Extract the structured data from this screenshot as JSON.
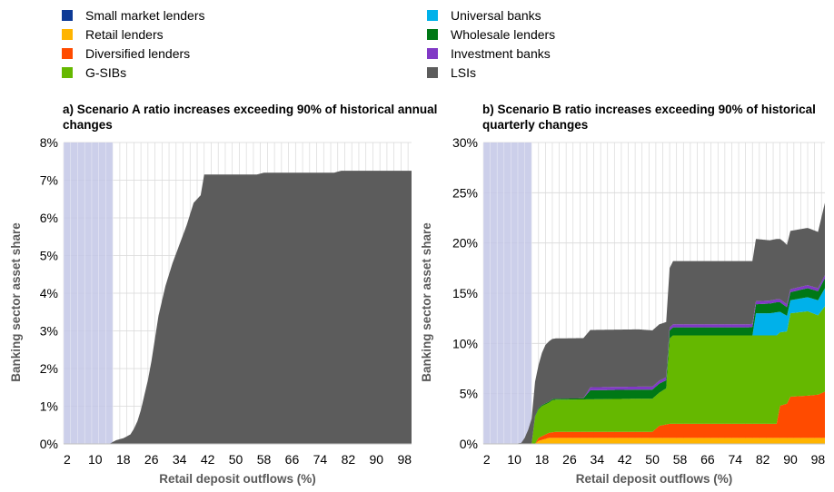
{
  "legend": [
    {
      "name": "Small market lenders",
      "color": "#0d3a96"
    },
    {
      "name": "Retail lenders",
      "color": "#ffb400"
    },
    {
      "name": "Diversified lenders",
      "color": "#ff4b00"
    },
    {
      "name": "G-SIBs",
      "color": "#65b800"
    },
    {
      "name": "Universal banks",
      "color": "#00b1ea"
    },
    {
      "name": "Wholesale lenders",
      "color": "#007816"
    },
    {
      "name": "Investment banks",
      "color": "#8139c6"
    },
    {
      "name": "LSIs",
      "color": "#5c5c5c"
    }
  ],
  "chart_data": [
    {
      "type": "area",
      "title": "a) Scenario A ratio increases exceeding 90% of historical annual changes",
      "xlabel": "Retail deposit outflows (%)",
      "ylabel": "Banking sector asset share",
      "xlim": [
        1,
        100
      ],
      "ylim": [
        0,
        8
      ],
      "y_ticks": [
        "0%",
        "1%",
        "2%",
        "3%",
        "4%",
        "5%",
        "6%",
        "7%",
        "8%"
      ],
      "x_ticks": [
        "2",
        "10",
        "18",
        "26",
        "34",
        "42",
        "50",
        "58",
        "66",
        "74",
        "82",
        "90",
        "98"
      ],
      "shaded_region": [
        1,
        15
      ],
      "stacked": true,
      "series": [
        {
          "name": "LSIs",
          "points": [
            [
              1,
              0
            ],
            [
              14,
              0
            ],
            [
              15,
              0.05
            ],
            [
              16,
              0.1
            ],
            [
              18,
              0.15
            ],
            [
              20,
              0.25
            ],
            [
              21,
              0.4
            ],
            [
              22,
              0.6
            ],
            [
              23,
              0.9
            ],
            [
              24,
              1.3
            ],
            [
              25,
              1.7
            ],
            [
              26,
              2.2
            ],
            [
              27,
              2.8
            ],
            [
              28,
              3.4
            ],
            [
              30,
              4.2
            ],
            [
              32,
              4.8
            ],
            [
              34,
              5.3
            ],
            [
              36,
              5.8
            ],
            [
              37,
              6.1
            ],
            [
              38,
              6.4
            ],
            [
              40,
              6.6
            ],
            [
              41,
              7.15
            ],
            [
              56,
              7.15
            ],
            [
              58,
              7.2
            ],
            [
              78,
              7.2
            ],
            [
              80,
              7.25
            ],
            [
              100,
              7.25
            ]
          ]
        }
      ]
    },
    {
      "type": "area",
      "title": "b) Scenario B ratio increases exceeding 90% of historical quarterly changes",
      "xlabel": "Retail deposit outflows (%)",
      "ylabel": "Banking sector asset share",
      "xlim": [
        1,
        100
      ],
      "ylim": [
        0,
        30
      ],
      "y_ticks": [
        "0%",
        "5%",
        "10%",
        "15%",
        "20%",
        "25%",
        "30%"
      ],
      "x_ticks": [
        "2",
        "10",
        "18",
        "26",
        "34",
        "42",
        "50",
        "58",
        "66",
        "74",
        "82",
        "90",
        "98"
      ],
      "shaded_region": [
        1,
        15
      ],
      "stacked": true,
      "series": [
        {
          "name": "Small market lenders",
          "points": [
            [
              1,
              0
            ],
            [
              100,
              0
            ]
          ]
        },
        {
          "name": "Retail lenders",
          "points": [
            [
              1,
              0
            ],
            [
              16,
              0
            ],
            [
              17,
              0.3
            ],
            [
              20,
              0.6
            ],
            [
              100,
              0.6
            ]
          ]
        },
        {
          "name": "Diversified lenders",
          "points": [
            [
              1,
              0
            ],
            [
              16,
              0
            ],
            [
              17,
              0.3
            ],
            [
              20,
              0.5
            ],
            [
              22,
              0.6
            ],
            [
              50,
              0.6
            ],
            [
              52,
              1.2
            ],
            [
              55,
              1.4
            ],
            [
              86,
              1.4
            ],
            [
              87,
              3.2
            ],
            [
              89,
              3.4
            ],
            [
              90,
              4.1
            ],
            [
              95,
              4.2
            ],
            [
              98,
              4.3
            ],
            [
              100,
              4.6
            ]
          ]
        },
        {
          "name": "G-SIBs",
          "points": [
            [
              1,
              0
            ],
            [
              15,
              0
            ],
            [
              16,
              2.7
            ],
            [
              18,
              3.0
            ],
            [
              20,
              3.0
            ],
            [
              21,
              3.2
            ],
            [
              23,
              3.2
            ],
            [
              46,
              3.3
            ],
            [
              52,
              3.3
            ],
            [
              54,
              3.6
            ],
            [
              55,
              8.5
            ],
            [
              56,
              8.8
            ],
            [
              86,
              8.8
            ],
            [
              87,
              7.3
            ],
            [
              89,
              7.2
            ],
            [
              90,
              8.3
            ],
            [
              95,
              8.4
            ],
            [
              98,
              7.9
            ],
            [
              100,
              8.5
            ]
          ]
        },
        {
          "name": "Universal banks",
          "points": [
            [
              1,
              0
            ],
            [
              78,
              0
            ],
            [
              79,
              0
            ],
            [
              80,
              2.2
            ],
            [
              84,
              2.2
            ],
            [
              86,
              2.3
            ],
            [
              90,
              1.3
            ],
            [
              95,
              1.4
            ],
            [
              98,
              1.5
            ],
            [
              100,
              1.8
            ]
          ]
        },
        {
          "name": "Wholesale lenders",
          "points": [
            [
              1,
              0
            ],
            [
              15,
              0
            ],
            [
              16,
              0.1
            ],
            [
              30,
              0.1
            ],
            [
              32,
              0.9
            ],
            [
              46,
              0.9
            ],
            [
              52,
              0.9
            ],
            [
              54,
              0.8
            ],
            [
              56,
              0.8
            ],
            [
              78,
              0.8
            ],
            [
              80,
              0.9
            ],
            [
              86,
              1.0
            ],
            [
              90,
              0.8
            ],
            [
              95,
              0.9
            ],
            [
              98,
              0.9
            ],
            [
              100,
              1.0
            ]
          ]
        },
        {
          "name": "Investment banks",
          "points": [
            [
              1,
              0
            ],
            [
              30,
              0
            ],
            [
              32,
              0.3
            ],
            [
              100,
              0.3
            ]
          ]
        },
        {
          "name": "LSIs",
          "points": [
            [
              1,
              0
            ],
            [
              10,
              0
            ],
            [
              12,
              0.1
            ],
            [
              13,
              0.6
            ],
            [
              14,
              1.4
            ],
            [
              15,
              2.5
            ],
            [
              16,
              3.4
            ],
            [
              17,
              4.3
            ],
            [
              18,
              5.2
            ],
            [
              19,
              5.8
            ],
            [
              20,
              6.0
            ],
            [
              30,
              6.0
            ],
            [
              32,
              5.7
            ],
            [
              46,
              5.7
            ],
            [
              50,
              5.6
            ],
            [
              52,
              5.6
            ],
            [
              54,
              5.5
            ],
            [
              56,
              6.3
            ],
            [
              78,
              6.3
            ],
            [
              80,
              6.2
            ],
            [
              84,
              6.0
            ],
            [
              86,
              6.0
            ],
            [
              88,
              6.0
            ],
            [
              90,
              5.8
            ],
            [
              95,
              5.7
            ],
            [
              98,
              5.6
            ],
            [
              100,
              7.2
            ]
          ]
        }
      ]
    }
  ]
}
